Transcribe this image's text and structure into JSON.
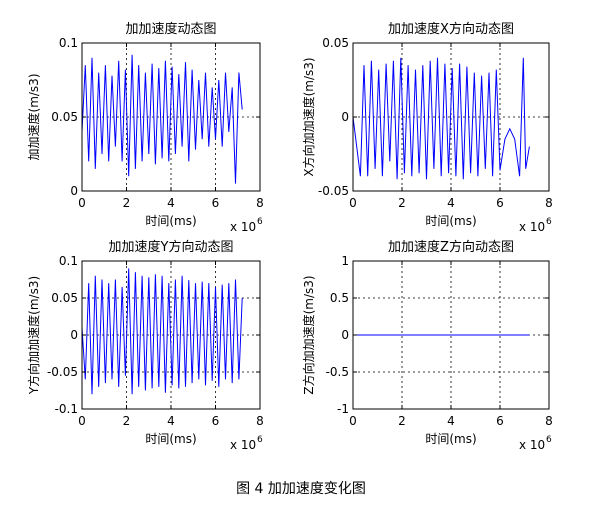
{
  "figure_caption": "图 4  加加速度变化图",
  "chart_data": [
    {
      "type": "line",
      "title": "加加速度动态图",
      "xlabel": "时间(ms)",
      "ylabel": "加加速度(m/s3)",
      "x_multiplier": "x 10",
      "x_exponent": "6",
      "xlim": [
        0,
        8
      ],
      "ylim": [
        0,
        0.1
      ],
      "xticks": [
        0,
        2,
        4,
        6,
        8
      ],
      "xtick_labels": [
        "0",
        "2",
        "4",
        "6",
        "8"
      ],
      "yticks": [
        0,
        0.05,
        0.1
      ],
      "ytick_labels": [
        "0",
        "0.05",
        "0.1"
      ],
      "grid": true,
      "color": "#0000ff",
      "x": [
        0,
        0.15,
        0.3,
        0.45,
        0.6,
        0.75,
        0.9,
        1.05,
        1.2,
        1.35,
        1.5,
        1.65,
        1.8,
        1.95,
        2.1,
        2.25,
        2.4,
        2.55,
        2.7,
        2.85,
        3.0,
        3.15,
        3.3,
        3.45,
        3.6,
        3.75,
        3.9,
        4.05,
        4.2,
        4.35,
        4.5,
        4.65,
        4.8,
        4.95,
        5.1,
        5.25,
        5.4,
        5.55,
        5.7,
        5.85,
        6.0,
        6.15,
        6.3,
        6.45,
        6.6,
        6.75,
        6.9,
        7.05,
        7.2
      ],
      "y": [
        0.04,
        0.085,
        0.02,
        0.09,
        0.015,
        0.08,
        0.025,
        0.085,
        0.02,
        0.078,
        0.03,
        0.088,
        0.02,
        0.082,
        0.01,
        0.092,
        0.015,
        0.085,
        0.02,
        0.08,
        0.025,
        0.086,
        0.018,
        0.083,
        0.022,
        0.088,
        0.02,
        0.084,
        0.025,
        0.079,
        0.03,
        0.087,
        0.02,
        0.082,
        0.028,
        0.075,
        0.035,
        0.08,
        0.03,
        0.07,
        0.035,
        0.075,
        0.03,
        0.08,
        0.04,
        0.07,
        0.005,
        0.08,
        0.055
      ]
    },
    {
      "type": "line",
      "title": "加加速度X方向动态图",
      "xlabel": "时间(ms)",
      "ylabel": "X方向加加速度(m/s3)",
      "x_multiplier": "x 10",
      "x_exponent": "6",
      "xlim": [
        0,
        8
      ],
      "ylim": [
        -0.05,
        0.05
      ],
      "xticks": [
        0,
        2,
        4,
        6,
        8
      ],
      "xtick_labels": [
        "0",
        "2",
        "4",
        "6",
        "8"
      ],
      "yticks": [
        -0.05,
        0,
        0.05
      ],
      "ytick_labels": [
        "-0.05",
        "0",
        "0.05"
      ],
      "grid": true,
      "color": "#0000ff",
      "x": [
        0,
        0.15,
        0.3,
        0.45,
        0.6,
        0.75,
        0.9,
        1.05,
        1.2,
        1.35,
        1.5,
        1.65,
        1.8,
        1.95,
        2.1,
        2.25,
        2.4,
        2.55,
        2.7,
        2.85,
        3.0,
        3.15,
        3.3,
        3.45,
        3.6,
        3.75,
        3.9,
        4.05,
        4.2,
        4.35,
        4.5,
        4.65,
        4.8,
        4.95,
        5.1,
        5.25,
        5.4,
        5.55,
        5.7,
        5.85,
        6.0,
        6.2,
        6.4,
        6.6,
        6.8,
        6.95,
        7.05,
        7.2
      ],
      "y": [
        0.0,
        -0.02,
        -0.04,
        0.035,
        -0.04,
        0.038,
        -0.035,
        0.032,
        -0.04,
        0.036,
        -0.03,
        0.038,
        -0.042,
        0.04,
        -0.038,
        0.035,
        -0.04,
        0.032,
        -0.038,
        0.035,
        -0.042,
        0.038,
        -0.035,
        0.04,
        -0.04,
        0.036,
        -0.038,
        0.033,
        -0.04,
        0.036,
        -0.042,
        0.034,
        -0.038,
        0.03,
        -0.04,
        0.028,
        -0.035,
        0.03,
        -0.04,
        0.032,
        -0.036,
        -0.015,
        -0.008,
        -0.015,
        -0.04,
        0.04,
        -0.035,
        -0.02
      ]
    },
    {
      "type": "line",
      "title": "加加速度Y方向动态图",
      "xlabel": "时间(ms)",
      "ylabel": "Y方向加加速度(m/s3)",
      "x_multiplier": "x 10",
      "x_exponent": "6",
      "xlim": [
        0,
        8
      ],
      "ylim": [
        -0.1,
        0.1
      ],
      "xticks": [
        0,
        2,
        4,
        6,
        8
      ],
      "xtick_labels": [
        "0",
        "2",
        "4",
        "6",
        "8"
      ],
      "yticks": [
        -0.1,
        -0.05,
        0,
        0.05,
        0.1
      ],
      "ytick_labels": [
        "-0.1",
        "-0.05",
        "0",
        "0.05",
        "0.1"
      ],
      "grid": true,
      "color": "#0000ff",
      "x": [
        0,
        0.15,
        0.3,
        0.45,
        0.6,
        0.75,
        0.9,
        1.05,
        1.2,
        1.35,
        1.5,
        1.65,
        1.8,
        1.95,
        2.1,
        2.25,
        2.4,
        2.55,
        2.7,
        2.85,
        3.0,
        3.15,
        3.3,
        3.45,
        3.6,
        3.75,
        3.9,
        4.05,
        4.2,
        4.35,
        4.5,
        4.65,
        4.8,
        4.95,
        5.1,
        5.25,
        5.4,
        5.55,
        5.7,
        5.85,
        6.0,
        6.15,
        6.3,
        6.45,
        6.6,
        6.75,
        6.9,
        7.05,
        7.2
      ],
      "y": [
        0.01,
        -0.06,
        0.07,
        -0.08,
        0.08,
        -0.07,
        0.075,
        -0.065,
        0.07,
        -0.06,
        0.075,
        -0.07,
        0.065,
        -0.055,
        0.09,
        -0.08,
        0.085,
        -0.07,
        0.08,
        -0.075,
        0.078,
        -0.072,
        0.082,
        -0.07,
        0.08,
        -0.078,
        0.07,
        -0.068,
        0.075,
        -0.072,
        0.08,
        -0.07,
        0.074,
        -0.065,
        0.07,
        -0.06,
        0.072,
        -0.068,
        0.07,
        -0.062,
        0.065,
        -0.07,
        0.068,
        -0.06,
        0.07,
        -0.065,
        0.075,
        -0.06,
        0.05
      ]
    },
    {
      "type": "line",
      "title": "加加速度Z方向动态图",
      "xlabel": "时间(ms)",
      "ylabel": "Z方向加加速度(m/s3)",
      "x_multiplier": "x 10",
      "x_exponent": "6",
      "xlim": [
        0,
        8
      ],
      "ylim": [
        -1,
        1
      ],
      "xticks": [
        0,
        2,
        4,
        6,
        8
      ],
      "xtick_labels": [
        "0",
        "2",
        "4",
        "6",
        "8"
      ],
      "yticks": [
        -1,
        -0.5,
        0,
        0.5,
        1
      ],
      "ytick_labels": [
        "-1",
        "-0.5",
        "0",
        "0.5",
        "1"
      ],
      "grid": true,
      "color": "#0000ff",
      "x": [
        0,
        7.2
      ],
      "y": [
        0,
        0
      ]
    }
  ]
}
